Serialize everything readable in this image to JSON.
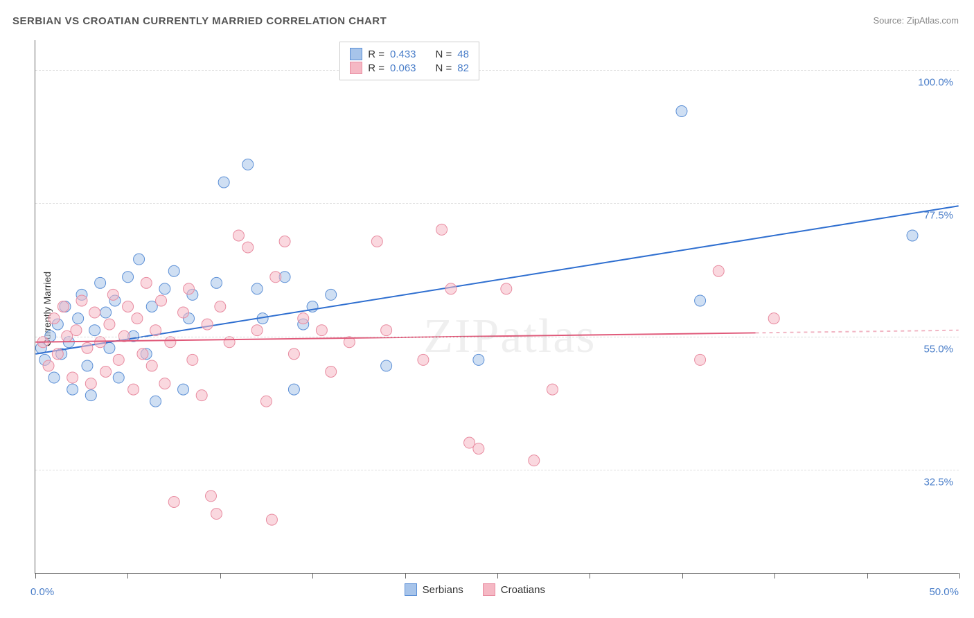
{
  "title": "SERBIAN VS CROATIAN CURRENTLY MARRIED CORRELATION CHART",
  "source_prefix": "Source: ",
  "source_name": "ZipAtlas.com",
  "y_axis_label": "Currently Married",
  "watermark": "ZIPatlas",
  "chart": {
    "type": "scatter",
    "xlim": [
      0,
      50
    ],
    "ylim": [
      15,
      105
    ],
    "x_ticks": [
      0,
      5,
      10,
      15,
      20,
      25,
      30,
      35,
      40,
      45,
      50
    ],
    "x_tick_labels": {
      "0": "0.0%",
      "50": "50.0%"
    },
    "y_gridlines": [
      32.5,
      55.0,
      77.5,
      100.0
    ],
    "y_tick_labels": [
      "32.5%",
      "55.0%",
      "77.5%",
      "100.0%"
    ],
    "background_color": "#ffffff",
    "grid_color": "#dddddd",
    "axis_color": "#666666",
    "marker_radius": 8,
    "marker_opacity": 0.55,
    "series": [
      {
        "name": "Serbians",
        "color_fill": "#a7c4ea",
        "color_stroke": "#5b8fd6",
        "r_value": "0.433",
        "n_value": "48",
        "trend": {
          "x1": 0,
          "y1": 52,
          "x2": 50,
          "y2": 77,
          "solid_until_x": 50,
          "color": "#2f6fd0",
          "width": 2
        },
        "points": [
          [
            0.3,
            53
          ],
          [
            0.5,
            51
          ],
          [
            0.8,
            55
          ],
          [
            1.0,
            48
          ],
          [
            1.2,
            57
          ],
          [
            1.4,
            52
          ],
          [
            1.6,
            60
          ],
          [
            1.8,
            54
          ],
          [
            2.0,
            46
          ],
          [
            2.3,
            58
          ],
          [
            2.5,
            62
          ],
          [
            2.8,
            50
          ],
          [
            3.0,
            45
          ],
          [
            3.2,
            56
          ],
          [
            3.5,
            64
          ],
          [
            3.8,
            59
          ],
          [
            4.0,
            53
          ],
          [
            4.3,
            61
          ],
          [
            4.5,
            48
          ],
          [
            5.0,
            65
          ],
          [
            5.3,
            55
          ],
          [
            5.6,
            68
          ],
          [
            6.0,
            52
          ],
          [
            6.3,
            60
          ],
          [
            6.5,
            44
          ],
          [
            7.0,
            63
          ],
          [
            7.5,
            66
          ],
          [
            8.0,
            46
          ],
          [
            8.3,
            58
          ],
          [
            8.5,
            62
          ],
          [
            9.8,
            64
          ],
          [
            10.2,
            81
          ],
          [
            11.5,
            84
          ],
          [
            12.0,
            63
          ],
          [
            12.3,
            58
          ],
          [
            13.5,
            65
          ],
          [
            14.0,
            46
          ],
          [
            14.5,
            57
          ],
          [
            15.0,
            60
          ],
          [
            16.0,
            62
          ],
          [
            19.0,
            50
          ],
          [
            24.0,
            51
          ],
          [
            35.0,
            93
          ],
          [
            36.0,
            61
          ],
          [
            47.5,
            72
          ]
        ]
      },
      {
        "name": "Croatians",
        "color_fill": "#f5b8c4",
        "color_stroke": "#e88ba0",
        "r_value": "0.063",
        "n_value": "82",
        "trend": {
          "x1": 0,
          "y1": 54,
          "x2": 50,
          "y2": 56,
          "solid_until_x": 39,
          "color": "#e05a7a",
          "width": 2
        },
        "points": [
          [
            0.4,
            54
          ],
          [
            0.7,
            50
          ],
          [
            1.0,
            58
          ],
          [
            1.2,
            52
          ],
          [
            1.5,
            60
          ],
          [
            1.7,
            55
          ],
          [
            2.0,
            48
          ],
          [
            2.2,
            56
          ],
          [
            2.5,
            61
          ],
          [
            2.8,
            53
          ],
          [
            3.0,
            47
          ],
          [
            3.2,
            59
          ],
          [
            3.5,
            54
          ],
          [
            3.8,
            49
          ],
          [
            4.0,
            57
          ],
          [
            4.2,
            62
          ],
          [
            4.5,
            51
          ],
          [
            4.8,
            55
          ],
          [
            5.0,
            60
          ],
          [
            5.3,
            46
          ],
          [
            5.5,
            58
          ],
          [
            5.8,
            52
          ],
          [
            6.0,
            64
          ],
          [
            6.3,
            50
          ],
          [
            6.5,
            56
          ],
          [
            6.8,
            61
          ],
          [
            7.0,
            47
          ],
          [
            7.3,
            54
          ],
          [
            7.5,
            27
          ],
          [
            8.0,
            59
          ],
          [
            8.3,
            63
          ],
          [
            8.5,
            51
          ],
          [
            9.0,
            45
          ],
          [
            9.3,
            57
          ],
          [
            9.5,
            28
          ],
          [
            9.8,
            25
          ],
          [
            10.0,
            60
          ],
          [
            10.5,
            54
          ],
          [
            11.0,
            72
          ],
          [
            11.5,
            70
          ],
          [
            12.0,
            56
          ],
          [
            12.5,
            44
          ],
          [
            12.8,
            24
          ],
          [
            13.0,
            65
          ],
          [
            13.5,
            71
          ],
          [
            14.0,
            52
          ],
          [
            14.5,
            58
          ],
          [
            15.5,
            56
          ],
          [
            16.0,
            49
          ],
          [
            17.0,
            54
          ],
          [
            18.5,
            71
          ],
          [
            19.0,
            56
          ],
          [
            21.0,
            51
          ],
          [
            22.0,
            73
          ],
          [
            22.5,
            63
          ],
          [
            23.5,
            37
          ],
          [
            24.0,
            36
          ],
          [
            25.5,
            63
          ],
          [
            27.0,
            34
          ],
          [
            28.0,
            46
          ],
          [
            36.0,
            51
          ],
          [
            37.0,
            66
          ],
          [
            40.0,
            58
          ]
        ]
      }
    ],
    "legend_labels": {
      "r": "R =",
      "n": "N ="
    }
  },
  "bottom_legend": [
    {
      "label": "Serbians"
    },
    {
      "label": "Croatians"
    }
  ]
}
